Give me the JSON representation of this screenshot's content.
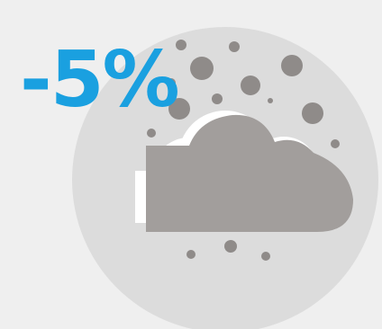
{
  "change_label": "-5%",
  "colors": {
    "background": "#efefef",
    "circle": "#dcdcdc",
    "cloud": "#a29e9c",
    "particles": "#8f8b89",
    "white_edge": "#ffffff",
    "label": "#1aa0e0"
  },
  "icons": [
    "cloud-icon",
    "particle-dot-icon"
  ]
}
